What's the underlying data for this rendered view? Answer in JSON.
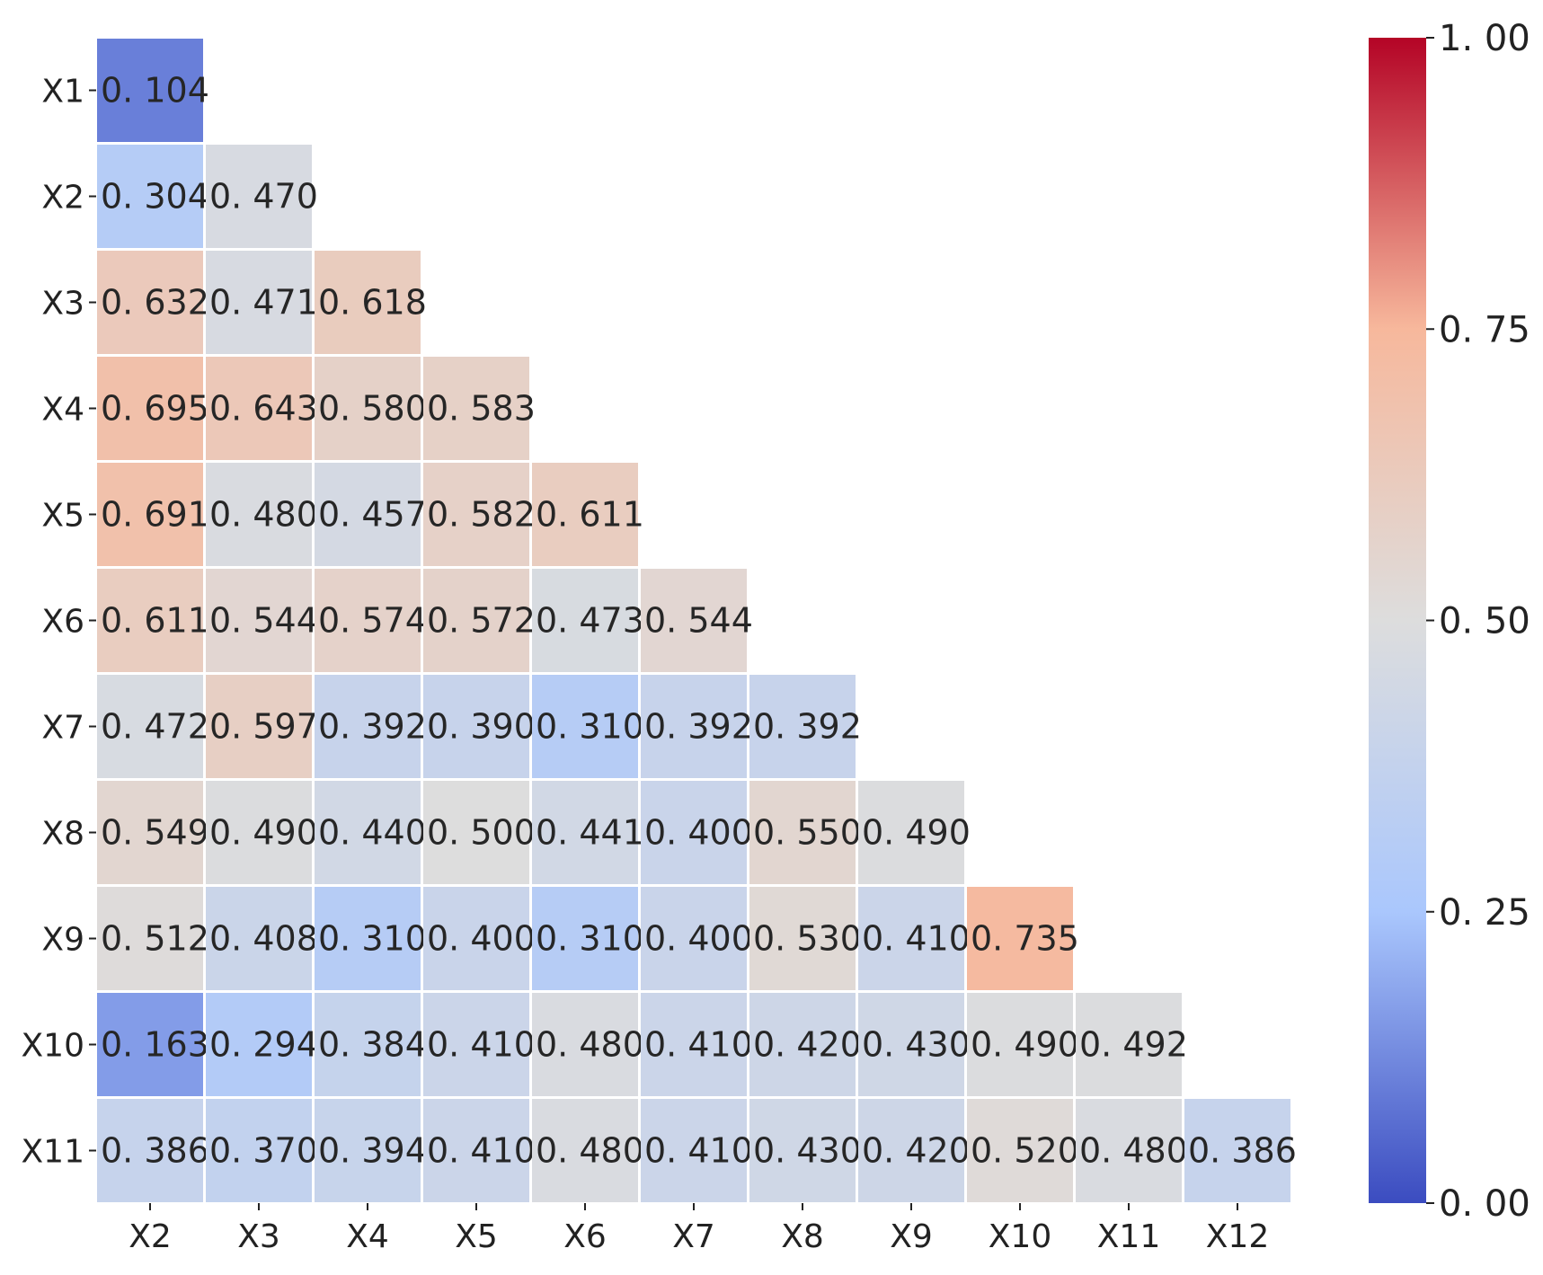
{
  "chart_data": {
    "type": "heatmap",
    "title": "",
    "xlabel": "",
    "ylabel": "",
    "x_categories": [
      "X2",
      "X3",
      "X4",
      "X5",
      "X6",
      "X7",
      "X8",
      "X9",
      "X10",
      "X11",
      "X12"
    ],
    "y_categories": [
      "X1",
      "X2",
      "X3",
      "X4",
      "X5",
      "X6",
      "X7",
      "X8",
      "X9",
      "X10",
      "X11"
    ],
    "values": [
      [
        0.104
      ],
      [
        0.304,
        0.47
      ],
      [
        0.632,
        0.471,
        0.618
      ],
      [
        0.695,
        0.643,
        0.58,
        0.583
      ],
      [
        0.691,
        0.48,
        0.457,
        0.582,
        0.611
      ],
      [
        0.611,
        0.544,
        0.574,
        0.572,
        0.473,
        0.544
      ],
      [
        0.472,
        0.597,
        0.392,
        0.39,
        0.31,
        0.392,
        0.392
      ],
      [
        0.549,
        0.49,
        0.44,
        0.5,
        0.441,
        0.4,
        0.55,
        0.49
      ],
      [
        0.512,
        0.408,
        0.31,
        0.4,
        0.31,
        0.4,
        0.53,
        0.41,
        0.735
      ],
      [
        0.163,
        0.294,
        0.384,
        0.41,
        0.48,
        0.41,
        0.42,
        0.43,
        0.49,
        0.492
      ],
      [
        0.386,
        0.37,
        0.394,
        0.41,
        0.48,
        0.41,
        0.43,
        0.42,
        0.52,
        0.48,
        0.386
      ]
    ],
    "value_labels": [
      [
        "0. 104"
      ],
      [
        "0. 304",
        "0. 470"
      ],
      [
        "0. 632",
        "0. 471",
        "0. 618"
      ],
      [
        "0. 695",
        "0. 643",
        "0. 580",
        "0. 583"
      ],
      [
        "0. 691",
        "0. 480",
        "0. 457",
        "0. 582",
        "0. 611"
      ],
      [
        "0. 611",
        "0. 544",
        "0. 574",
        "0. 572",
        "0. 473",
        "0. 544"
      ],
      [
        "0. 472",
        "0. 597",
        "0. 392",
        "0. 390",
        "0. 310",
        "0. 392",
        "0. 392"
      ],
      [
        "0. 549",
        "0. 490",
        "0. 440",
        "0. 500",
        "0. 441",
        "0. 400",
        "0. 550",
        "0. 490"
      ],
      [
        "0. 512",
        "0. 408",
        "0. 310",
        "0. 400",
        "0. 310",
        "0. 400",
        "0. 530",
        "0. 410",
        "0. 735"
      ],
      [
        "0. 163",
        "0. 294",
        "0. 384",
        "0. 410",
        "0. 480",
        "0. 410",
        "0. 420",
        "0. 430",
        "0. 490",
        "0. 492"
      ],
      [
        "0. 386",
        "0. 370",
        "0. 394",
        "0. 410",
        "0. 480",
        "0. 410",
        "0. 430",
        "0. 420",
        "0. 520",
        "0. 480",
        "0. 386"
      ]
    ],
    "layout": "lower-triangular",
    "colormap": "coolwarm",
    "colormap_stops": [
      "#3b4cc0",
      "#aac7fd",
      "#dddddd",
      "#f7b89c",
      "#b40426"
    ],
    "value_range": [
      0,
      1
    ],
    "colorbar": {
      "position": "right",
      "ticks": [
        0.0,
        0.25,
        0.5,
        0.75,
        1.0
      ],
      "tick_labels": [
        "0. 00",
        "0. 25",
        "0. 50",
        "0. 75",
        "1. 00"
      ]
    },
    "grid": false
  }
}
